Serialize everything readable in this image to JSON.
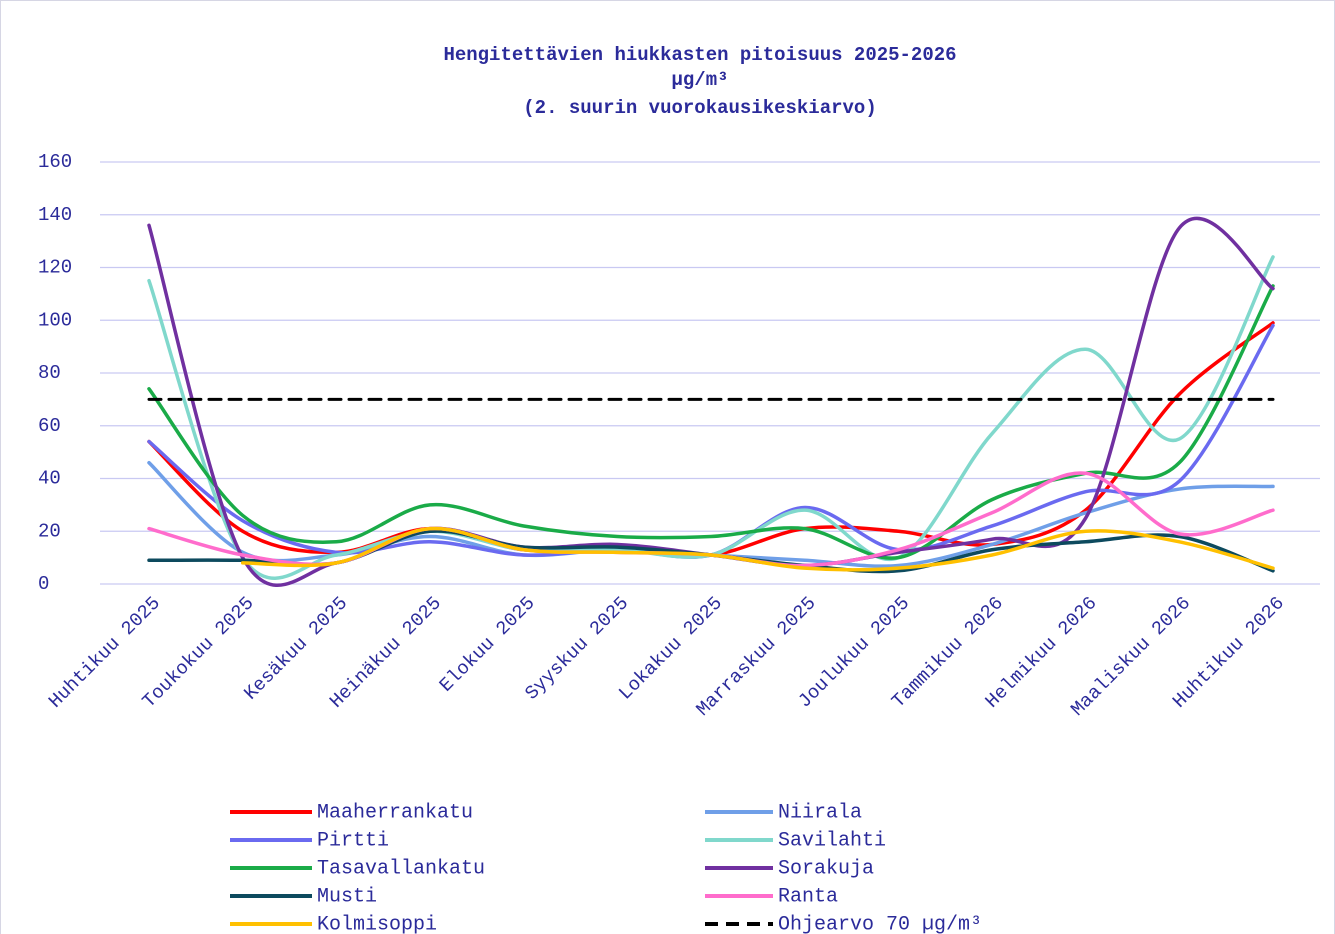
{
  "chart_data": {
    "type": "line",
    "title": "Hengitettävien hiukkasten pitoisuus 2025-2026",
    "subtitle": "µg/m³",
    "subtitle2": "(2. suurin vuorokausikeskiarvo)",
    "categories": [
      "Huhtikuu 2025",
      "Toukokuu 2025",
      "Kesäkuu 2025",
      "Heinäkuu 2025",
      "Elokuu 2025",
      "Syyskuu 2025",
      "Lokakuu 2025",
      "Marraskuu 2025",
      "Joulukuu 2025",
      "Tammikuu 2026",
      "Helmikuu 2026",
      "Maaliskuu 2026",
      "Huhtikuu 2026"
    ],
    "series": [
      {
        "name": "Maaherrankatu",
        "color": "#ff0000",
        "values": [
          54,
          20,
          12,
          21,
          13,
          14,
          11,
          21,
          20,
          15,
          28,
          72,
          99
        ]
      },
      {
        "name": "Niirala",
        "color": "#6f9fe8",
        "values": [
          46,
          12,
          11,
          18,
          11,
          13,
          11,
          9,
          7,
          15,
          27,
          36,
          37
        ]
      },
      {
        "name": "Pirtti",
        "color": "#6a6af0",
        "values": [
          54,
          24,
          12,
          16,
          11,
          13,
          11,
          29,
          13,
          22,
          35,
          39,
          98
        ]
      },
      {
        "name": "Savilahti",
        "color": "#80d8cc",
        "values": [
          115,
          10,
          11,
          20,
          13,
          13,
          11,
          28,
          10,
          57,
          89,
          55,
          124
        ]
      },
      {
        "name": "Tasavallankatu",
        "color": "#1aab48",
        "values": [
          74,
          26,
          16,
          30,
          22,
          18,
          18,
          21,
          10,
          32,
          42,
          46,
          113
        ]
      },
      {
        "name": "Sorakuja",
        "color": "#7030a0",
        "values": [
          136,
          10,
          8,
          21,
          14,
          15,
          11,
          7,
          12,
          17,
          25,
          135,
          112
        ]
      },
      {
        "name": "Musti",
        "color": "#0d4a5e",
        "values": [
          9,
          9,
          8,
          20,
          14,
          14,
          11,
          7,
          5,
          13,
          16,
          18,
          5
        ]
      },
      {
        "name": "Ranta",
        "color": "#ff6ccc",
        "values": [
          21,
          11,
          8,
          21,
          13,
          12,
          11,
          7,
          13,
          27,
          42,
          19,
          28
        ]
      },
      {
        "name": "Kolmisoppi",
        "color": "#ffc000",
        "values": [
          null,
          8,
          8,
          21,
          13,
          12,
          11,
          6,
          6,
          11,
          20,
          16,
          6
        ]
      },
      {
        "name": "Ohjearvo 70 µg/m³",
        "color": "#000000",
        "dashed": true,
        "values": [
          70,
          70,
          70,
          70,
          70,
          70,
          70,
          70,
          70,
          70,
          70,
          70,
          70
        ]
      }
    ],
    "ylim": [
      0,
      160
    ],
    "yticks": [
      0,
      20,
      40,
      60,
      80,
      100,
      120,
      140,
      160
    ],
    "grid": true,
    "smooth": true
  }
}
